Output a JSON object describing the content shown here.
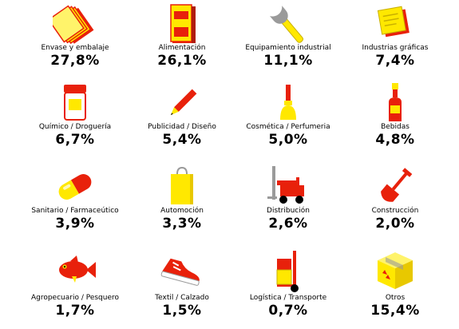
{
  "chart_data": {
    "type": "table",
    "categories": [
      "Envase y embalaje",
      "Alimentación",
      "Equipamiento industrial",
      "Industrias gráficas",
      "Químico / Droguería",
      "Publicidad / Diseño",
      "Cosmética / Perfumeria",
      "Bebidas",
      "Sanitario / Farmaceútico",
      "Automoción",
      "Distribución",
      "Construcción",
      "Agropecuario / Pesquero",
      "Textil / Calzado",
      "Logística / Transporte",
      "Otros"
    ],
    "values": [
      27.8,
      26.1,
      11.1,
      7.4,
      6.7,
      5.4,
      5.0,
      4.8,
      3.9,
      3.3,
      2.6,
      2.0,
      1.7,
      1.5,
      0.7,
      15.4
    ],
    "value_labels": [
      "27,8%",
      "26,1%",
      "11,1%",
      "7,4%",
      "6,7%",
      "5,4%",
      "5,0%",
      "4,8%",
      "3,9%",
      "3,3%",
      "2,6%",
      "2,0%",
      "1,7%",
      "1,5%",
      "0,7%",
      "15,4%"
    ]
  },
  "colors": {
    "yellow": "#ffe800",
    "red": "#e8210b",
    "dark_red": "#b01c0c",
    "gray": "#9a9a9a"
  },
  "icons": [
    "stacked-paper-icon",
    "food-bag-icon",
    "wrench-icon",
    "note-pad-icon",
    "chemical-jar-icon",
    "pencil-icon",
    "perfume-brush-icon",
    "bottle-icon",
    "pill-capsule-icon",
    "shopping-bag-icon",
    "forklift-icon",
    "shovel-icon",
    "fish-icon",
    "sneaker-icon",
    "hand-truck-icon",
    "box-icon"
  ]
}
